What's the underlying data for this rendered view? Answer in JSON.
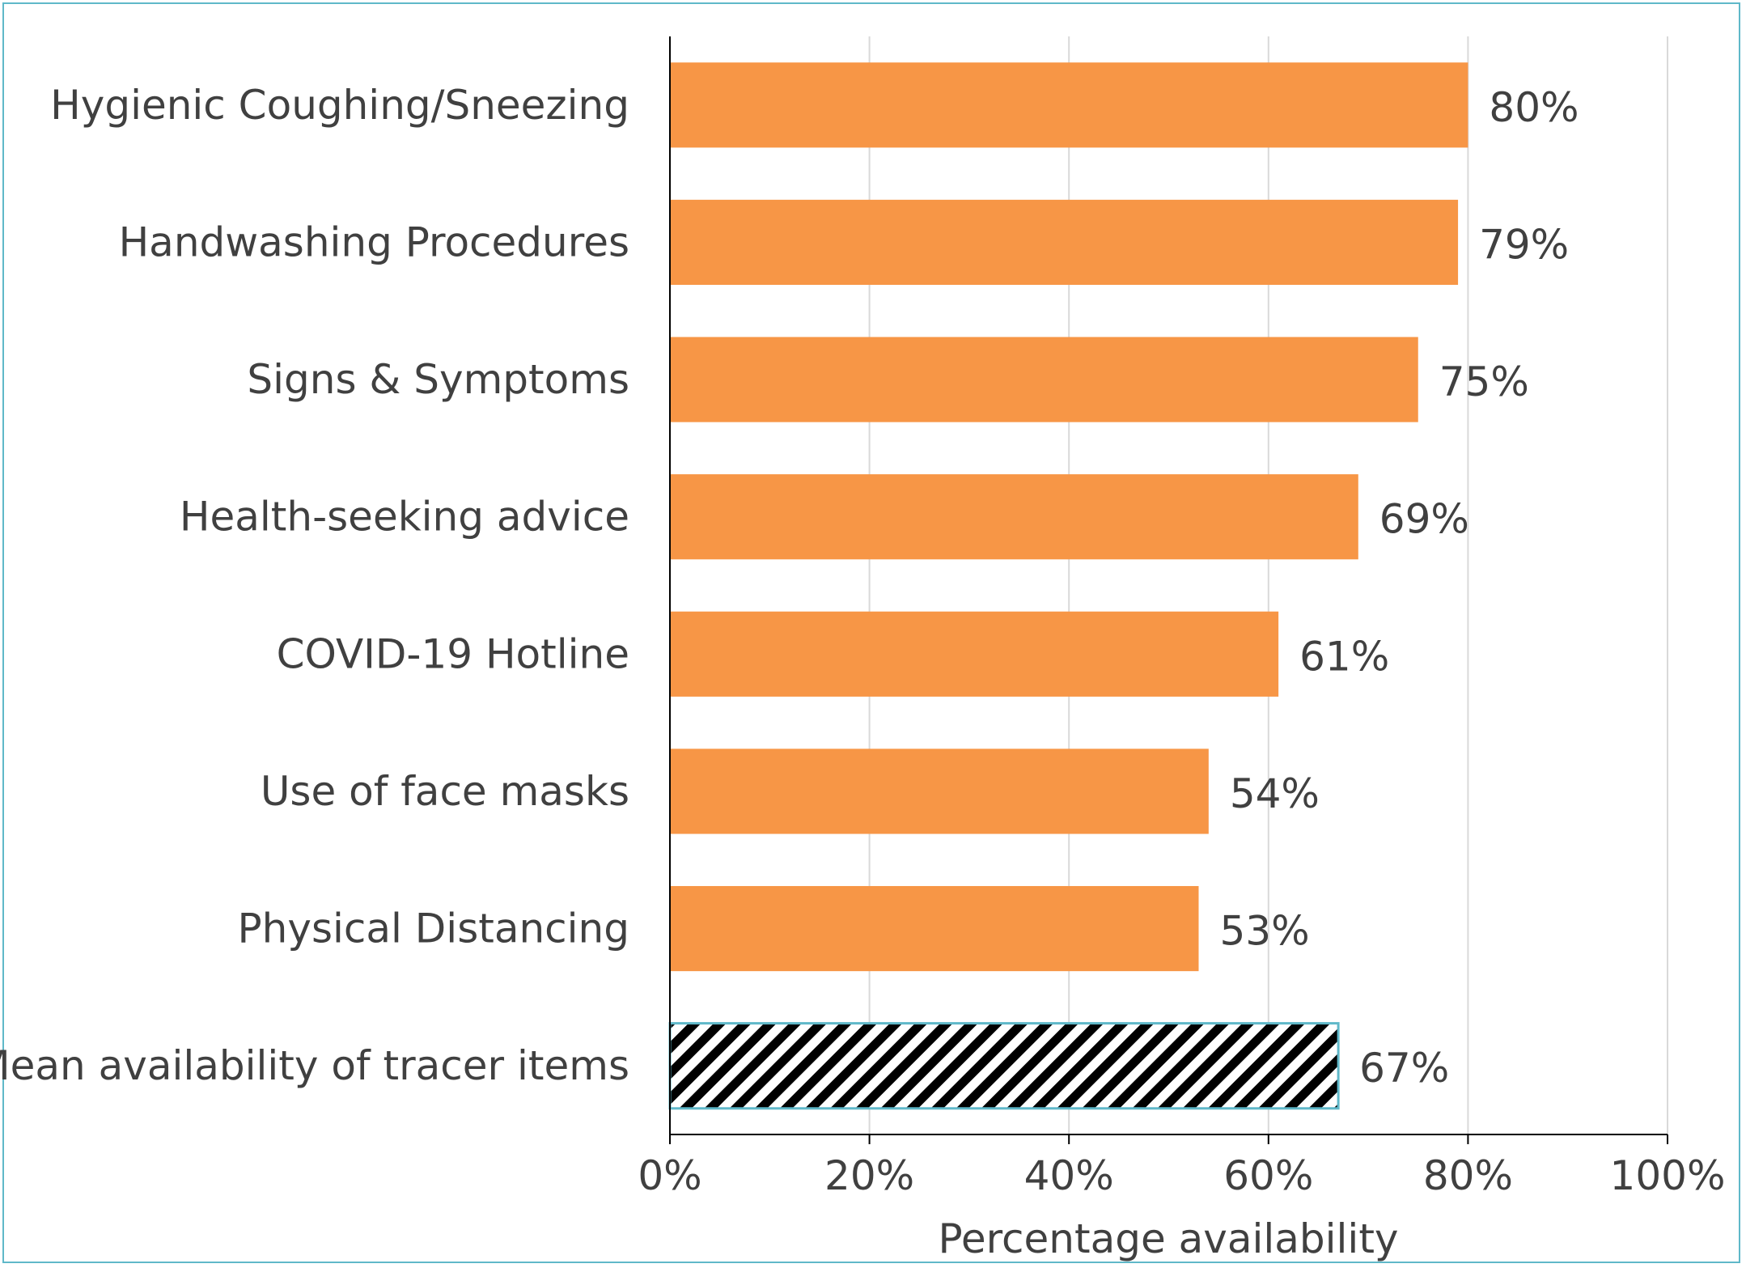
{
  "chart_data": {
    "type": "bar",
    "orientation": "horizontal",
    "title": "",
    "xlabel": "Percentage availability",
    "ylabel": "",
    "xlim": [
      0,
      100
    ],
    "x_ticks": [
      0,
      20,
      40,
      60,
      80,
      100
    ],
    "x_tick_labels": [
      "0%",
      "20%",
      "40%",
      "60%",
      "80%",
      "100%"
    ],
    "grid": "vertical",
    "categories": [
      "Hygienic Coughing/Sneezing",
      "Handwashing Procedures",
      "Signs & Symptoms",
      "Health-seeking advice",
      "COVID-19 Hotline",
      "Use of face masks",
      "Physical Distancing",
      "Mean availability of tracer items"
    ],
    "values": [
      80,
      79,
      75,
      69,
      61,
      54,
      53,
      67
    ],
    "value_labels": [
      "80%",
      "79%",
      "75%",
      "69%",
      "61%",
      "54%",
      "53%",
      "67%"
    ],
    "bar_styles": [
      "solid",
      "solid",
      "solid",
      "solid",
      "solid",
      "solid",
      "solid",
      "hatched"
    ],
    "colors": {
      "bar": "#f79646",
      "hatch_stroke": "#000000",
      "hatch_border": "#5fb8c9",
      "grid": "#d9d9d9",
      "axis": "#000000",
      "text": "#404040",
      "frame": "#5fb8c9"
    }
  }
}
